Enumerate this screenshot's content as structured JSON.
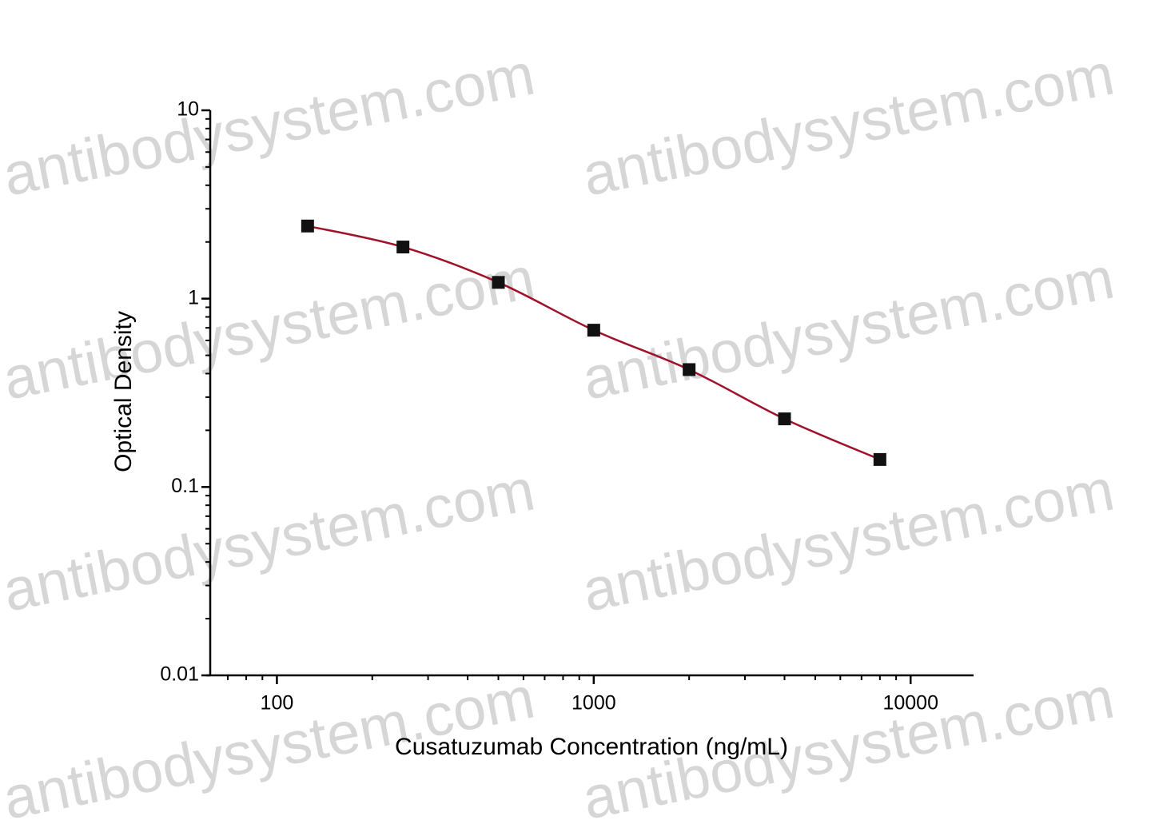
{
  "chart_data": {
    "type": "scatter",
    "x_label": "Cusatuzumab Concentration (ng/mL)",
    "y_label": "Optical Density",
    "watermark": "antibodysystem.com",
    "x_scale": "log",
    "y_scale": "log",
    "xlim": [
      61.6,
      15800
    ],
    "ylim": [
      0.01,
      10
    ],
    "xticks": [
      100,
      1000,
      10000
    ],
    "yticks": [
      0.01,
      0.1,
      1,
      10
    ],
    "xminorticks": [
      70,
      80,
      90,
      200,
      300,
      400,
      500,
      600,
      700,
      800,
      900,
      2000,
      3000,
      4000,
      5000,
      6000,
      7000,
      8000,
      9000
    ],
    "yminorticks": [
      0.02,
      0.03,
      0.04,
      0.05,
      0.06,
      0.07,
      0.08,
      0.09,
      0.2,
      0.3,
      0.4,
      0.5,
      0.6,
      0.7,
      0.8,
      0.9,
      2,
      3,
      4,
      5,
      6,
      7,
      8,
      9
    ],
    "series": [
      {
        "color": "#a0122a",
        "x": [
          125,
          250,
          500,
          1000,
          2000,
          4000,
          8000
        ],
        "values": [
          2.43,
          1.88,
          1.22,
          0.68,
          0.42,
          0.23,
          0.14
        ]
      }
    ]
  }
}
